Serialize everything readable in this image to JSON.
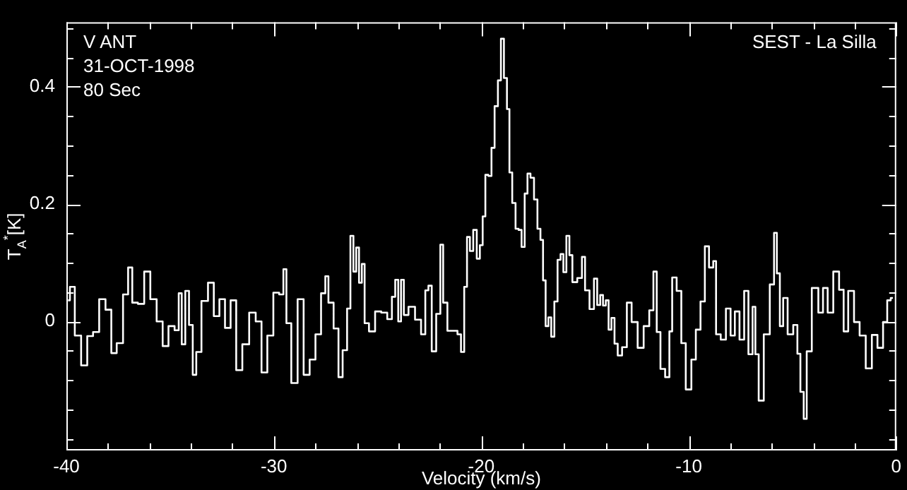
{
  "chart_data": {
    "type": "step",
    "xlabel": "Velocity (km/s)",
    "ylabel": "T$_{A}$$^{*}$[K]",
    "annotations": [
      "V ANT",
      "31-OCT-1998",
      "80 Sec",
      "SEST - La Silla"
    ],
    "xlim": [
      -40,
      0
    ],
    "ylim": [
      -0.22,
      0.51
    ],
    "xticks": [
      -40,
      {
        "value": -38,
        "label": null
      },
      {
        "value": -36,
        "label": null
      },
      {
        "value": -34,
        "label": null
      },
      {
        "value": -32,
        "label": null
      },
      -30,
      {
        "value": -28,
        "label": null
      },
      {
        "value": -26,
        "label": null
      },
      {
        "value": -24,
        "label": null
      },
      {
        "value": -22,
        "label": null
      },
      -20,
      {
        "value": -18,
        "label": null
      },
      {
        "value": -16,
        "label": null
      },
      {
        "value": -14,
        "label": null
      },
      {
        "value": -12,
        "label": null
      },
      -10,
      {
        "value": -8,
        "label": null
      },
      {
        "value": -6,
        "label": null
      },
      {
        "value": -4,
        "label": null
      },
      {
        "value": -2,
        "label": null
      },
      0
    ],
    "yticks": [
      {
        "value": -0.2,
        "label": null
      },
      {
        "value": -0.15,
        "label": null
      },
      {
        "value": -0.1,
        "label": null
      },
      {
        "value": -0.05,
        "label": null
      },
      0,
      {
        "value": 0.05,
        "label": null
      },
      {
        "value": 0.1,
        "label": null
      },
      {
        "value": 0.15,
        "label": null
      },
      0.2,
      {
        "value": 0.25,
        "label": null
      },
      {
        "value": 0.3,
        "label": null
      },
      {
        "value": 0.35,
        "label": null
      },
      0.4,
      {
        "value": 0.45,
        "label": null
      },
      {
        "value": 0.5,
        "label": null
      }
    ],
    "grid": false,
    "legend": false,
    "marker": "none",
    "line_style": "solid",
    "series": [
      {
        "color": "#ffffff",
        "x": [
          -39.92,
          -39.74,
          -39.45,
          -39.13,
          -38.86,
          -38.57,
          -38.27,
          -37.96,
          -37.71,
          -37.44,
          -37.1,
          -36.95,
          -36.7,
          -36.41,
          -36.09,
          -35.82,
          -35.48,
          -35.24,
          -34.92,
          -34.65,
          -34.52,
          -34.36,
          -34.18,
          -34.0,
          -33.82,
          -33.66,
          -33.32,
          -33.03,
          -32.76,
          -32.49,
          -32.22,
          -31.95,
          -31.68,
          -31.36,
          -31.02,
          -30.73,
          -30.46,
          -30.17,
          -29.88,
          -29.61,
          -29.47,
          -29.32,
          -29.0,
          -28.71,
          -28.42,
          -28.13,
          -27.86,
          -27.59,
          -27.45,
          -27.29,
          -26.95,
          -26.82,
          -26.55,
          -26.39,
          -26.23,
          -26.1,
          -25.96,
          -25.83,
          -25.69,
          -25.56,
          -25.27,
          -24.97,
          -24.68,
          -24.39,
          -24.23,
          -24.07,
          -23.94,
          -23.8,
          -23.67,
          -23.35,
          -23.04,
          -22.77,
          -22.63,
          -22.47,
          -22.31,
          -22.04,
          -21.91,
          -21.77,
          -21.5,
          -21.23,
          -21.07,
          -20.89,
          -20.76,
          -20.62,
          -20.48,
          -20.3,
          -20.14,
          -20.0,
          -19.87,
          -19.74,
          -19.58,
          -19.44,
          -19.28,
          -19.12,
          -18.99,
          -18.83,
          -18.7,
          -18.59,
          -18.43,
          -18.27,
          -18.14,
          -17.98,
          -17.84,
          -17.71,
          -17.55,
          -17.37,
          -17.22,
          -17.08,
          -16.97,
          -16.83,
          -16.7,
          -16.56,
          -16.4,
          -16.25,
          -16.11,
          -15.98,
          -15.82,
          -15.69,
          -15.53,
          -15.22,
          -15.08,
          -14.92,
          -14.65,
          -14.49,
          -14.34,
          -14.2,
          -14.07,
          -13.93,
          -13.8,
          -13.66,
          -13.5,
          -13.35,
          -13.08,
          -12.89,
          -12.62,
          -12.31,
          -12.04,
          -11.77,
          -11.64,
          -11.45,
          -11.28,
          -11.0,
          -10.87,
          -10.73,
          -10.44,
          -10.28,
          -10.01,
          -9.74,
          -9.58,
          -9.29,
          -9.16,
          -8.89,
          -8.75,
          -8.62,
          -8.3,
          -8.12,
          -7.85,
          -7.71,
          -7.4,
          -7.26,
          -6.99,
          -6.86,
          -6.72,
          -6.54,
          -6.23,
          -5.96,
          -5.82,
          -5.69,
          -5.53,
          -5.37,
          -5.1,
          -4.83,
          -4.7,
          -4.54,
          -4.38,
          -4.25,
          -3.89,
          -3.62,
          -3.44,
          -3.17,
          -2.9,
          -2.61,
          -2.46,
          -2.17,
          -1.9,
          -1.63,
          -1.31,
          -1.04,
          -0.77,
          -0.5,
          -0.37,
          -0.16
        ],
        "values": [
          0.036,
          0.059,
          -0.024,
          -0.075,
          -0.025,
          -0.018,
          0.038,
          0.02,
          -0.054,
          -0.037,
          0.046,
          0.092,
          0.032,
          0.03,
          0.085,
          0.038,
          0,
          -0.042,
          -0.008,
          -0.015,
          0.048,
          -0.039,
          0.052,
          -0.006,
          -0.091,
          -0.052,
          0.035,
          0.066,
          0.009,
          0.038,
          -0.011,
          0.036,
          -0.083,
          -0.039,
          0.015,
          0,
          -0.087,
          -0.024,
          0.049,
          0.046,
          0.089,
          -0.003,
          -0.105,
          0.038,
          -0.091,
          -0.065,
          -0.022,
          0.048,
          0.077,
          0.032,
          -0.012,
          -0.095,
          -0.049,
          0.022,
          0.146,
          0.085,
          0.126,
          0.066,
          0.098,
          -0.003,
          -0.017,
          0.017,
          0.015,
          0.004,
          0.042,
          0.071,
          0,
          0.071,
          0.011,
          0.025,
          0.003,
          -0.022,
          0.053,
          0.061,
          -0.051,
          0.013,
          0.131,
          0.032,
          -0.016,
          -0.016,
          -0.022,
          -0.052,
          0.059,
          0.144,
          0.12,
          0.156,
          0.107,
          0.13,
          0.179,
          0.25,
          0.248,
          0.296,
          0.367,
          0.411,
          0.482,
          0.415,
          0.362,
          0.254,
          0.202,
          0.158,
          0.156,
          0.127,
          0.218,
          0.252,
          0.245,
          0.208,
          0.158,
          0.139,
          0.07,
          -0.008,
          0.007,
          -0.026,
          0.034,
          0.105,
          0.115,
          0.084,
          0.146,
          0.113,
          0.067,
          0.074,
          0.11,
          0.053,
          0.021,
          0.073,
          0.028,
          0.045,
          0.027,
          0.036,
          -0.014,
          0.006,
          -0.038,
          -0.058,
          -0.044,
          0.032,
          -0.001,
          -0.045,
          -0.008,
          0.019,
          0.085,
          -0.018,
          -0.081,
          -0.095,
          -0.017,
          0.075,
          0.052,
          -0.037,
          -0.116,
          -0.065,
          -0.014,
          0.034,
          0.128,
          0.092,
          0.103,
          -0.022,
          -0.031,
          0.022,
          -0.024,
          0.017,
          -0.031,
          0.052,
          -0.056,
          0.025,
          -0.056,
          -0.135,
          -0.022,
          0.063,
          0.151,
          0.082,
          -0.008,
          0.04,
          -0.022,
          -0.006,
          -0.055,
          -0.12,
          -0.166,
          -0.051,
          0.057,
          0.015,
          0.057,
          0.015,
          0.085,
          0.054,
          -0.017,
          0.052,
          -0.001,
          -0.024,
          -0.08,
          -0.023,
          -0.045,
          -0.001,
          0.036,
          0.04
        ]
      }
    ]
  }
}
